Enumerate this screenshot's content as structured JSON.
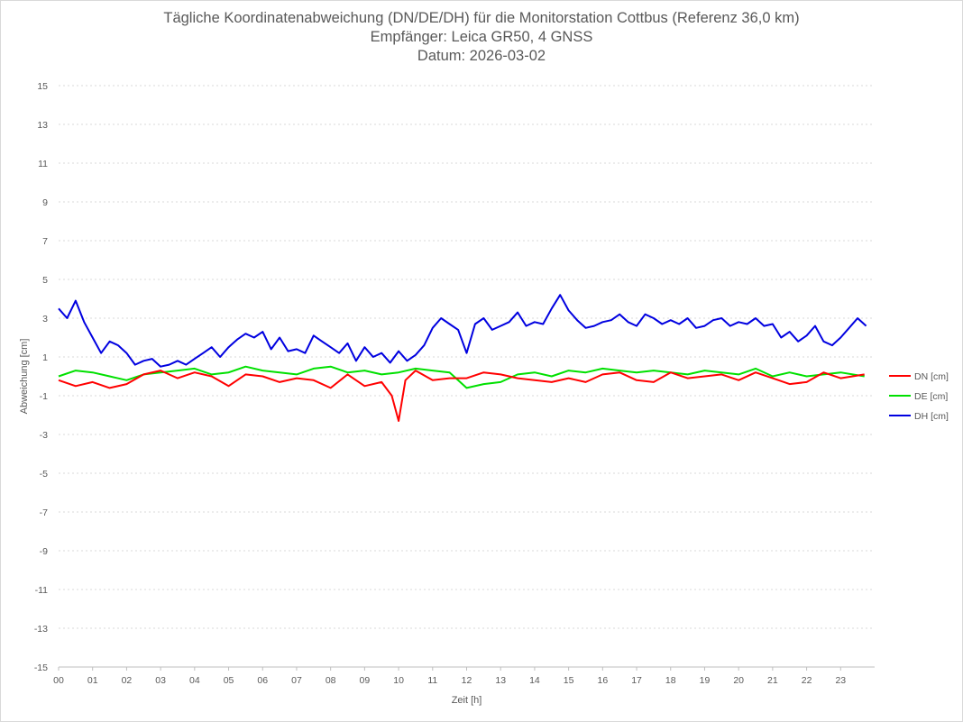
{
  "chart_data": {
    "type": "line",
    "title": "Tägliche Koordinatenabweichung (DN/DE/DH) für die Monitorstation Cottbus (Referenz 36,0 km)",
    "subtitle": "Empfänger: Leica GR50, 4 GNSS",
    "date_label": "Datum: 2026-03-02",
    "xlabel": "Zeit [h]",
    "ylabel": "Abweichung [cm]",
    "xlim": [
      0,
      24
    ],
    "ylim": [
      -15,
      15
    ],
    "x_ticks": [
      "00",
      "01",
      "02",
      "03",
      "04",
      "05",
      "06",
      "07",
      "08",
      "09",
      "10",
      "11",
      "12",
      "13",
      "14",
      "15",
      "16",
      "17",
      "18",
      "19",
      "20",
      "21",
      "22",
      "23"
    ],
    "y_ticks": [
      "15",
      "13",
      "11",
      "9",
      "7",
      "5",
      "3",
      "1",
      "-1",
      "-3",
      "-5",
      "-7",
      "-9",
      "-11",
      "-13",
      "-15"
    ],
    "grid": true,
    "legend_position": "right",
    "series": [
      {
        "name": "DN [cm]",
        "color": "#ff0000",
        "x": [
          0,
          0.5,
          1,
          1.5,
          2,
          2.5,
          3,
          3.5,
          4,
          4.5,
          5,
          5.5,
          6,
          6.5,
          7,
          7.5,
          8,
          8.5,
          9,
          9.5,
          9.8,
          10,
          10.2,
          10.5,
          11,
          11.5,
          12,
          12.5,
          13,
          13.5,
          14,
          14.5,
          15,
          15.5,
          16,
          16.5,
          17,
          17.5,
          18,
          18.5,
          19,
          19.5,
          20,
          20.5,
          21,
          21.5,
          22,
          22.5,
          23,
          23.7
        ],
        "values": [
          -0.2,
          -0.5,
          -0.3,
          -0.6,
          -0.4,
          0.1,
          0.3,
          -0.1,
          0.2,
          0.0,
          -0.5,
          0.1,
          0.0,
          -0.3,
          -0.1,
          -0.2,
          -0.6,
          0.1,
          -0.5,
          -0.3,
          -1.0,
          -2.3,
          -0.2,
          0.3,
          -0.2,
          -0.1,
          -0.1,
          0.2,
          0.1,
          -0.1,
          -0.2,
          -0.3,
          -0.1,
          -0.3,
          0.1,
          0.2,
          -0.2,
          -0.3,
          0.2,
          -0.1,
          0.0,
          0.1,
          -0.2,
          0.2,
          -0.1,
          -0.4,
          -0.3,
          0.2,
          -0.1,
          0.1
        ]
      },
      {
        "name": "DE [cm]",
        "color": "#00e000",
        "x": [
          0,
          0.5,
          1,
          1.5,
          2,
          2.5,
          3,
          3.5,
          4,
          4.5,
          5,
          5.5,
          6,
          6.5,
          7,
          7.5,
          8,
          8.5,
          9,
          9.5,
          10,
          10.5,
          11,
          11.5,
          12,
          12.5,
          13,
          13.5,
          14,
          14.5,
          15,
          15.5,
          16,
          16.5,
          17,
          17.5,
          18,
          18.5,
          19,
          19.5,
          20,
          20.5,
          21,
          21.5,
          22,
          22.5,
          23,
          23.7
        ],
        "values": [
          0.0,
          0.3,
          0.2,
          0.0,
          -0.2,
          0.1,
          0.2,
          0.3,
          0.4,
          0.1,
          0.2,
          0.5,
          0.3,
          0.2,
          0.1,
          0.4,
          0.5,
          0.2,
          0.3,
          0.1,
          0.2,
          0.4,
          0.3,
          0.2,
          -0.6,
          -0.4,
          -0.3,
          0.1,
          0.2,
          0.0,
          0.3,
          0.2,
          0.4,
          0.3,
          0.2,
          0.3,
          0.2,
          0.1,
          0.3,
          0.2,
          0.1,
          0.4,
          0.0,
          0.2,
          0.0,
          0.1,
          0.2,
          0.0
        ]
      },
      {
        "name": "DH [cm]",
        "color": "#0000e0",
        "x": [
          0,
          0.25,
          0.5,
          0.75,
          1,
          1.25,
          1.5,
          1.75,
          2,
          2.25,
          2.5,
          2.75,
          3,
          3.25,
          3.5,
          3.75,
          4,
          4.25,
          4.5,
          4.75,
          5,
          5.25,
          5.5,
          5.75,
          6,
          6.25,
          6.5,
          6.75,
          7,
          7.25,
          7.5,
          7.75,
          8,
          8.25,
          8.5,
          8.75,
          9,
          9.25,
          9.5,
          9.75,
          10,
          10.25,
          10.5,
          10.75,
          11,
          11.25,
          11.5,
          11.75,
          12,
          12.25,
          12.5,
          12.75,
          13,
          13.25,
          13.5,
          13.75,
          14,
          14.25,
          14.5,
          14.75,
          15,
          15.25,
          15.5,
          15.75,
          16,
          16.25,
          16.5,
          16.75,
          17,
          17.25,
          17.5,
          17.75,
          18,
          18.25,
          18.5,
          18.75,
          19,
          19.25,
          19.5,
          19.75,
          20,
          20.25,
          20.5,
          20.75,
          21,
          21.25,
          21.5,
          21.75,
          22,
          22.25,
          22.5,
          22.75,
          23,
          23.25,
          23.5,
          23.75
        ],
        "values": [
          3.5,
          3.0,
          3.9,
          2.8,
          2.0,
          1.2,
          1.8,
          1.6,
          1.2,
          0.6,
          0.8,
          0.9,
          0.5,
          0.6,
          0.8,
          0.6,
          0.9,
          1.2,
          1.5,
          1.0,
          1.5,
          1.9,
          2.2,
          2.0,
          2.3,
          1.4,
          2.0,
          1.3,
          1.4,
          1.2,
          2.1,
          1.8,
          1.5,
          1.2,
          1.7,
          0.8,
          1.5,
          1.0,
          1.2,
          0.7,
          1.3,
          0.8,
          1.1,
          1.6,
          2.5,
          3.0,
          2.7,
          2.4,
          1.2,
          2.7,
          3.0,
          2.4,
          2.6,
          2.8,
          3.3,
          2.6,
          2.8,
          2.7,
          3.5,
          4.2,
          3.4,
          2.9,
          2.5,
          2.6,
          2.8,
          2.9,
          3.2,
          2.8,
          2.6,
          3.2,
          3.0,
          2.7,
          2.9,
          2.7,
          3.0,
          2.5,
          2.6,
          2.9,
          3.0,
          2.6,
          2.8,
          2.7,
          3.0,
          2.6,
          2.7,
          2.0,
          2.3,
          1.8,
          2.1,
          2.6,
          1.8,
          1.6,
          2.0,
          2.5,
          3.0,
          2.6
        ]
      }
    ]
  }
}
